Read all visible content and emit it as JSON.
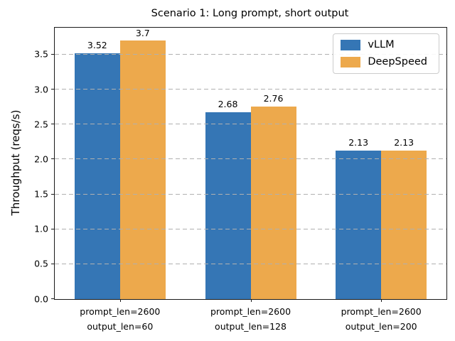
{
  "chart_data": {
    "type": "bar",
    "title": "Scenario 1: Long prompt, short output",
    "xlabel": "",
    "ylabel": "Throughput (reqs/s)",
    "categories": [
      "prompt_len=2600\noutput_len=60",
      "prompt_len=2600\noutput_len=128",
      "prompt_len=2600\noutput_len=200"
    ],
    "series": [
      {
        "name": "vLLM",
        "color": "#3576b5",
        "values": [
          3.52,
          2.68,
          2.13
        ],
        "labels": [
          "3.52",
          "2.68",
          "2.13"
        ]
      },
      {
        "name": "DeepSpeed",
        "color": "#eda94c",
        "values": [
          3.7,
          2.76,
          2.13
        ],
        "labels": [
          "3.7",
          "2.76",
          "2.13"
        ]
      }
    ],
    "yticks": [
      "0.0",
      "0.5",
      "1.0",
      "1.5",
      "2.0",
      "2.5",
      "3.0",
      "3.5"
    ],
    "ylim": [
      0,
      3.886
    ],
    "grid": "horizontal-dashed",
    "grid_color": "#b0b0b0",
    "legend_position": "upper right",
    "bar_width_fraction": 0.35
  }
}
